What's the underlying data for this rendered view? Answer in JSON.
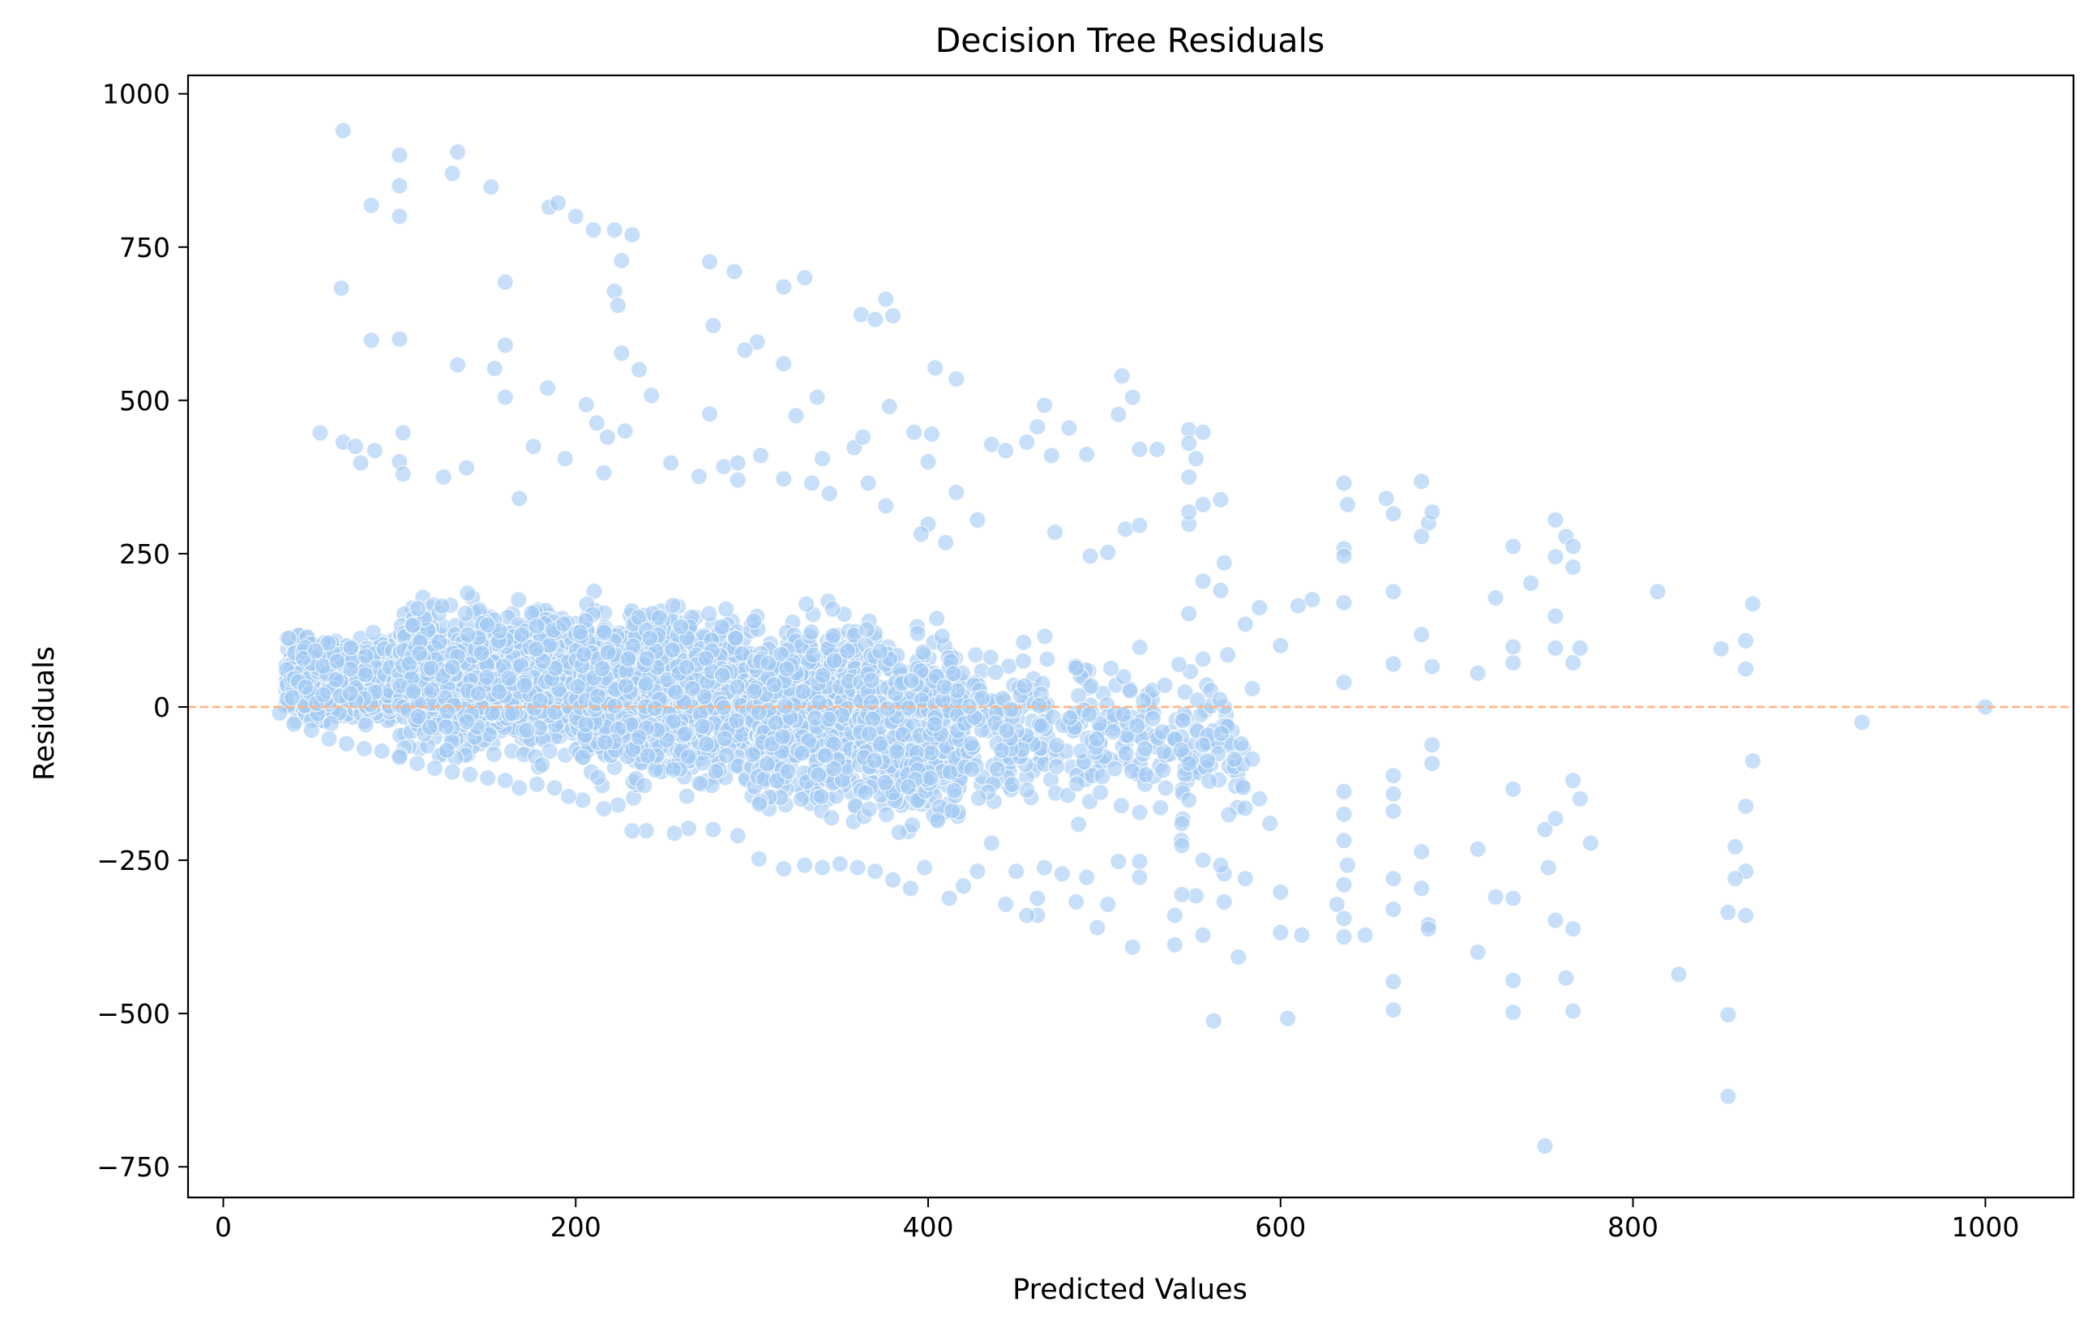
{
  "chart_data": {
    "type": "scatter",
    "title": "Decision Tree Residuals",
    "xlabel": "Predicted Values",
    "ylabel": "Residuals",
    "xlim": [
      -20,
      1050
    ],
    "ylim": [
      -800,
      1030
    ],
    "x_ticks": [
      0,
      200,
      400,
      600,
      800,
      1000
    ],
    "x_tick_labels": [
      "0",
      "200",
      "400",
      "600",
      "800",
      "1000"
    ],
    "y_ticks": [
      -750,
      -500,
      -250,
      0,
      250,
      500,
      750,
      1000
    ],
    "y_tick_labels": [
      "−750",
      "−500",
      "−250",
      "0",
      "250",
      "500",
      "750",
      "1000"
    ],
    "grid": false,
    "point_color": "#a1c9f4",
    "reference_line": {
      "y": 0,
      "color": "#ffb482",
      "style": "dashed"
    },
    "points": [
      [
        68,
        940
      ],
      [
        100,
        900
      ],
      [
        133,
        905
      ],
      [
        130,
        870
      ],
      [
        100,
        850
      ],
      [
        152,
        848
      ],
      [
        185,
        815
      ],
      [
        190,
        822
      ],
      [
        100,
        800
      ],
      [
        200,
        800
      ],
      [
        210,
        778
      ],
      [
        222,
        778
      ],
      [
        232,
        770
      ],
      [
        226,
        728
      ],
      [
        276,
        726
      ],
      [
        290,
        710
      ],
      [
        84,
        818
      ],
      [
        160,
        693
      ],
      [
        67,
        683
      ],
      [
        318,
        685
      ],
      [
        330,
        700
      ],
      [
        222,
        678
      ],
      [
        224,
        655
      ],
      [
        362,
        640
      ],
      [
        370,
        632
      ],
      [
        380,
        638
      ],
      [
        376,
        665
      ],
      [
        278,
        622
      ],
      [
        100,
        600
      ],
      [
        84,
        598
      ],
      [
        160,
        590
      ],
      [
        303,
        595
      ],
      [
        296,
        582
      ],
      [
        226,
        577
      ],
      [
        318,
        560
      ],
      [
        133,
        558
      ],
      [
        154,
        552
      ],
      [
        236,
        550
      ],
      [
        404,
        553
      ],
      [
        416,
        535
      ],
      [
        160,
        505
      ],
      [
        184,
        520
      ],
      [
        206,
        493
      ],
      [
        243,
        508
      ],
      [
        337,
        505
      ],
      [
        276,
        478
      ],
      [
        325,
        475
      ],
      [
        212,
        463
      ],
      [
        228,
        450
      ],
      [
        218,
        440
      ],
      [
        55,
        447
      ],
      [
        102,
        447
      ],
      [
        68,
        432
      ],
      [
        75,
        425
      ],
      [
        86,
        418
      ],
      [
        176,
        425
      ],
      [
        284,
        392
      ],
      [
        292,
        398
      ],
      [
        305,
        410
      ],
      [
        340,
        405
      ],
      [
        358,
        423
      ],
      [
        363,
        440
      ],
      [
        378,
        490
      ],
      [
        392,
        448
      ],
      [
        400,
        400
      ],
      [
        402,
        445
      ],
      [
        436,
        428
      ],
      [
        444,
        418
      ],
      [
        456,
        432
      ],
      [
        462,
        457
      ],
      [
        470,
        410
      ],
      [
        480,
        455
      ],
      [
        490,
        412
      ],
      [
        508,
        477
      ],
      [
        520,
        420
      ],
      [
        516,
        505
      ],
      [
        510,
        540
      ],
      [
        530,
        420
      ],
      [
        466,
        492
      ],
      [
        548,
        452
      ],
      [
        556,
        448
      ],
      [
        548,
        430
      ],
      [
        552,
        405
      ],
      [
        548,
        375
      ],
      [
        78,
        398
      ],
      [
        100,
        400
      ],
      [
        102,
        380
      ],
      [
        125,
        375
      ],
      [
        138,
        390
      ],
      [
        168,
        340
      ],
      [
        194,
        405
      ],
      [
        216,
        382
      ],
      [
        254,
        398
      ],
      [
        270,
        376
      ],
      [
        292,
        370
      ],
      [
        318,
        372
      ],
      [
        334,
        365
      ],
      [
        344,
        348
      ],
      [
        366,
        365
      ],
      [
        376,
        328
      ],
      [
        416,
        350
      ],
      [
        428,
        305
      ],
      [
        400,
        298
      ],
      [
        410,
        268
      ],
      [
        396,
        282
      ],
      [
        472,
        285
      ],
      [
        492,
        246
      ],
      [
        502,
        252
      ],
      [
        512,
        290
      ],
      [
        520,
        296
      ],
      [
        548,
        298
      ],
      [
        548,
        318
      ],
      [
        556,
        330
      ],
      [
        566,
        338
      ],
      [
        568,
        235
      ],
      [
        556,
        205
      ],
      [
        566,
        190
      ],
      [
        636,
        365
      ],
      [
        638,
        330
      ],
      [
        660,
        340
      ],
      [
        664,
        315
      ],
      [
        680,
        368
      ],
      [
        684,
        300
      ],
      [
        686,
        318
      ],
      [
        680,
        278
      ],
      [
        636,
        258
      ],
      [
        636,
        246
      ],
      [
        636,
        170
      ],
      [
        664,
        188
      ],
      [
        756,
        305
      ],
      [
        762,
        278
      ],
      [
        756,
        245
      ],
      [
        766,
        262
      ],
      [
        766,
        228
      ],
      [
        742,
        202
      ],
      [
        732,
        262
      ],
      [
        722,
        178
      ],
      [
        814,
        188
      ],
      [
        864,
        108
      ],
      [
        868,
        168
      ],
      [
        850,
        95
      ],
      [
        864,
        62
      ],
      [
        580,
        135
      ],
      [
        588,
        162
      ],
      [
        600,
        100
      ],
      [
        618,
        175
      ],
      [
        610,
        165
      ],
      [
        548,
        152
      ],
      [
        556,
        78
      ],
      [
        570,
        85
      ],
      [
        584,
        30
      ],
      [
        636,
        40
      ],
      [
        664,
        70
      ],
      [
        680,
        118
      ],
      [
        686,
        66
      ],
      [
        712,
        55
      ],
      [
        732,
        98
      ],
      [
        732,
        72
      ],
      [
        756,
        148
      ],
      [
        756,
        96
      ],
      [
        766,
        72
      ],
      [
        770,
        96
      ],
      [
        1000,
        0
      ],
      [
        930,
        -25
      ],
      [
        868,
        -88
      ],
      [
        864,
        -162
      ],
      [
        858,
        -228
      ],
      [
        864,
        -268
      ],
      [
        858,
        -280
      ],
      [
        854,
        -335
      ],
      [
        864,
        -340
      ],
      [
        854,
        -502
      ],
      [
        854,
        -635
      ],
      [
        826,
        -436
      ],
      [
        776,
        -222
      ],
      [
        770,
        -150
      ],
      [
        766,
        -120
      ],
      [
        766,
        -362
      ],
      [
        756,
        -348
      ],
      [
        762,
        -442
      ],
      [
        766,
        -496
      ],
      [
        750,
        -200
      ],
      [
        756,
        -182
      ],
      [
        752,
        -262
      ],
      [
        750,
        -716
      ],
      [
        732,
        -134
      ],
      [
        732,
        -312
      ],
      [
        732,
        -446
      ],
      [
        732,
        -498
      ],
      [
        722,
        -310
      ],
      [
        712,
        -400
      ],
      [
        712,
        -232
      ],
      [
        686,
        -62
      ],
      [
        686,
        -92
      ],
      [
        680,
        -236
      ],
      [
        680,
        -296
      ],
      [
        684,
        -355
      ],
      [
        684,
        -362
      ],
      [
        664,
        -112
      ],
      [
        664,
        -142
      ],
      [
        664,
        -170
      ],
      [
        664,
        -280
      ],
      [
        664,
        -330
      ],
      [
        664,
        -448
      ],
      [
        664,
        -494
      ],
      [
        636,
        -138
      ],
      [
        636,
        -175
      ],
      [
        636,
        -218
      ],
      [
        638,
        -258
      ],
      [
        636,
        -290
      ],
      [
        632,
        -322
      ],
      [
        636,
        -345
      ],
      [
        636,
        -375
      ],
      [
        648,
        -372
      ],
      [
        612,
        -372
      ],
      [
        600,
        -302
      ],
      [
        600,
        -368
      ],
      [
        604,
        -508
      ],
      [
        594,
        -190
      ],
      [
        588,
        -150
      ],
      [
        584,
        -85
      ],
      [
        580,
        -280
      ],
      [
        576,
        -408
      ],
      [
        568,
        -272
      ],
      [
        566,
        -258
      ],
      [
        568,
        -318
      ],
      [
        562,
        -512
      ],
      [
        556,
        -62
      ],
      [
        556,
        -250
      ],
      [
        552,
        -308
      ],
      [
        556,
        -372
      ],
      [
        548,
        -92
      ],
      [
        548,
        -152
      ],
      [
        544,
        -190
      ],
      [
        544,
        -226
      ],
      [
        544,
        -306
      ],
      [
        540,
        -340
      ],
      [
        540,
        -388
      ],
      [
        520,
        -172
      ],
      [
        520,
        -252
      ],
      [
        520,
        -278
      ],
      [
        516,
        -392
      ],
      [
        508,
        -252
      ],
      [
        502,
        -322
      ],
      [
        496,
        -360
      ],
      [
        490,
        -278
      ],
      [
        484,
        -318
      ],
      [
        476,
        -272
      ],
      [
        466,
        -262
      ],
      [
        462,
        -312
      ],
      [
        462,
        -340
      ],
      [
        456,
        -340
      ],
      [
        450,
        -268
      ],
      [
        444,
        -322
      ],
      [
        436,
        -222
      ],
      [
        428,
        -268
      ],
      [
        420,
        -292
      ],
      [
        412,
        -312
      ],
      [
        398,
        -262
      ],
      [
        390,
        -296
      ],
      [
        380,
        -282
      ],
      [
        370,
        -268
      ],
      [
        360,
        -262
      ],
      [
        350,
        -256
      ],
      [
        340,
        -262
      ],
      [
        330,
        -258
      ],
      [
        318,
        -264
      ],
      [
        304,
        -248
      ],
      [
        292,
        -210
      ],
      [
        278,
        -200
      ],
      [
        264,
        -198
      ],
      [
        256,
        -206
      ],
      [
        240,
        -202
      ],
      [
        232,
        -202
      ],
      [
        224,
        -160
      ],
      [
        216,
        -166
      ],
      [
        204,
        -152
      ],
      [
        196,
        -146
      ],
      [
        188,
        -132
      ],
      [
        178,
        -126
      ],
      [
        168,
        -132
      ],
      [
        160,
        -120
      ],
      [
        150,
        -116
      ],
      [
        140,
        -110
      ],
      [
        130,
        -106
      ],
      [
        120,
        -100
      ],
      [
        110,
        -92
      ],
      [
        100,
        -82
      ],
      [
        90,
        -72
      ],
      [
        80,
        -68
      ],
      [
        70,
        -60
      ],
      [
        60,
        -52
      ],
      [
        50,
        -38
      ],
      [
        40,
        -28
      ],
      [
        32,
        -10
      ]
    ],
    "dense_bands": [
      {
        "x_from": 35,
        "x_to": 100,
        "y_low": -45,
        "y_high": 130,
        "count": 700
      },
      {
        "x_from": 100,
        "x_to": 200,
        "y_low": -110,
        "y_high": 200,
        "count": 1100
      },
      {
        "x_from": 200,
        "x_to": 300,
        "y_low": -170,
        "y_high": 210,
        "count": 1000
      },
      {
        "x_from": 300,
        "x_to": 360,
        "y_low": -220,
        "y_high": 200,
        "count": 600
      },
      {
        "x_from": 360,
        "x_to": 420,
        "y_low": -240,
        "y_high": 180,
        "count": 450
      },
      {
        "x_from": 420,
        "x_to": 470,
        "y_low": -200,
        "y_high": 140,
        "count": 130
      },
      {
        "x_from": 470,
        "x_to": 530,
        "y_low": -220,
        "y_high": 130,
        "count": 120
      },
      {
        "x_from": 530,
        "x_to": 580,
        "y_low": -230,
        "y_high": 110,
        "count": 90
      }
    ]
  }
}
